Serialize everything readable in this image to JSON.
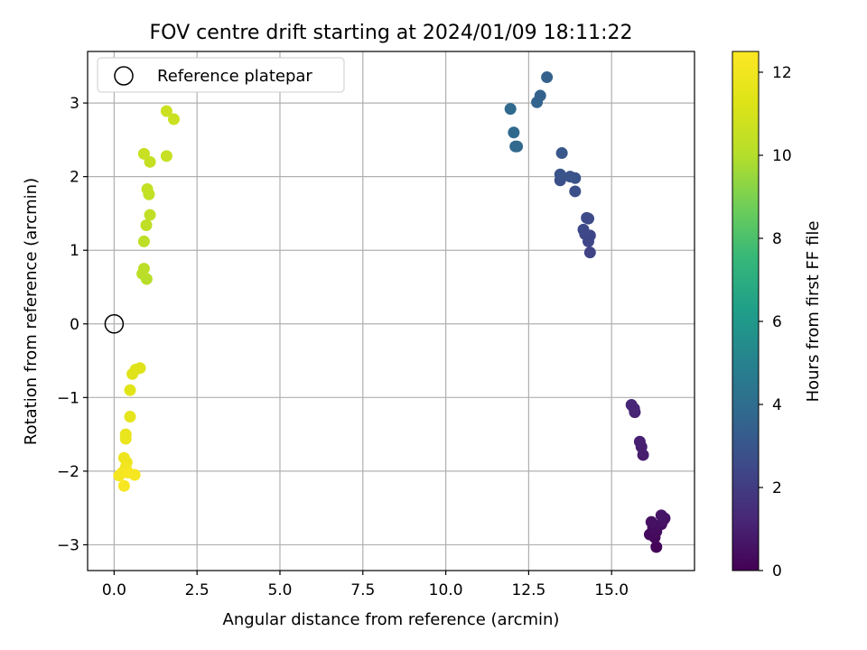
{
  "chart_data": {
    "type": "scatter",
    "title": "FOV centre drift starting at 2024/01/09 18:11:22",
    "xlabel": "Angular distance from reference (arcmin)",
    "ylabel": "Rotation from reference (arcmin)",
    "xlim": [
      -0.8,
      17.5
    ],
    "ylim": [
      -3.35,
      3.7
    ],
    "xticks": [
      0.0,
      2.5,
      5.0,
      7.5,
      10.0,
      12.5,
      15.0
    ],
    "xtick_labels": [
      "0.0",
      "2.5",
      "5.0",
      "7.5",
      "10.0",
      "12.5",
      "15.0"
    ],
    "yticks": [
      -3,
      -2,
      -1,
      0,
      1,
      2,
      3
    ],
    "ytick_labels": [
      "−3",
      "−2",
      "−1",
      "0",
      "1",
      "2",
      "3"
    ],
    "grid": true,
    "legend": {
      "position": "top-left",
      "entries": [
        "Reference platepar"
      ]
    },
    "reference_point": {
      "x": 0,
      "y": 0,
      "label": "Reference platepar"
    },
    "colorbar": {
      "label": "Hours from first FF file",
      "range": [
        0,
        12.5
      ],
      "ticks": [
        0,
        2,
        4,
        6,
        8,
        10,
        12
      ],
      "tick_labels": [
        "0",
        "2",
        "4",
        "6",
        "8",
        "10",
        "12"
      ],
      "colormap": "viridis"
    },
    "points": [
      {
        "x": 16.35,
        "y": -3.03,
        "h": 0.1
      },
      {
        "x": 16.3,
        "y": -2.9,
        "h": 0.2
      },
      {
        "x": 16.15,
        "y": -2.86,
        "h": 0.3
      },
      {
        "x": 16.35,
        "y": -2.82,
        "h": 0.35
      },
      {
        "x": 16.25,
        "y": -2.77,
        "h": 0.4
      },
      {
        "x": 16.5,
        "y": -2.72,
        "h": 0.45
      },
      {
        "x": 16.2,
        "y": -2.69,
        "h": 0.5
      },
      {
        "x": 16.55,
        "y": -2.67,
        "h": 0.55
      },
      {
        "x": 16.6,
        "y": -2.64,
        "h": 0.6
      },
      {
        "x": 16.5,
        "y": -2.6,
        "h": 0.65
      },
      {
        "x": 15.95,
        "y": -1.78,
        "h": 0.9
      },
      {
        "x": 15.9,
        "y": -1.67,
        "h": 0.95
      },
      {
        "x": 15.85,
        "y": -1.6,
        "h": 1.0
      },
      {
        "x": 15.7,
        "y": -1.2,
        "h": 1.1
      },
      {
        "x": 15.68,
        "y": -1.15,
        "h": 1.15
      },
      {
        "x": 15.6,
        "y": -1.1,
        "h": 1.2
      },
      {
        "x": 14.35,
        "y": 0.97,
        "h": 2.3
      },
      {
        "x": 14.35,
        "y": 1.2,
        "h": 2.35
      },
      {
        "x": 14.3,
        "y": 1.12,
        "h": 2.4
      },
      {
        "x": 14.2,
        "y": 1.22,
        "h": 2.45
      },
      {
        "x": 14.15,
        "y": 1.28,
        "h": 2.5
      },
      {
        "x": 14.3,
        "y": 1.43,
        "h": 2.55
      },
      {
        "x": 14.25,
        "y": 1.44,
        "h": 2.6
      },
      {
        "x": 13.9,
        "y": 1.8,
        "h": 2.75
      },
      {
        "x": 13.45,
        "y": 1.95,
        "h": 2.8
      },
      {
        "x": 13.9,
        "y": 1.98,
        "h": 2.85
      },
      {
        "x": 13.75,
        "y": 2.0,
        "h": 2.9
      },
      {
        "x": 13.45,
        "y": 2.03,
        "h": 2.95
      },
      {
        "x": 13.5,
        "y": 2.32,
        "h": 3.1
      },
      {
        "x": 12.15,
        "y": 2.41,
        "h": 3.7
      },
      {
        "x": 12.1,
        "y": 2.41,
        "h": 3.75
      },
      {
        "x": 12.05,
        "y": 2.6,
        "h": 3.8
      },
      {
        "x": 11.95,
        "y": 2.92,
        "h": 3.85
      },
      {
        "x": 12.75,
        "y": 3.01,
        "h": 3.6
      },
      {
        "x": 12.85,
        "y": 3.1,
        "h": 3.55
      },
      {
        "x": 13.05,
        "y": 3.35,
        "h": 3.5
      },
      {
        "x": 0.98,
        "y": 0.61,
        "h": 10.1
      },
      {
        "x": 0.85,
        "y": 0.68,
        "h": 10.15
      },
      {
        "x": 0.9,
        "y": 0.75,
        "h": 10.2
      },
      {
        "x": 0.9,
        "y": 1.12,
        "h": 10.25
      },
      {
        "x": 0.97,
        "y": 1.34,
        "h": 10.3
      },
      {
        "x": 1.08,
        "y": 1.48,
        "h": 10.35
      },
      {
        "x": 1.05,
        "y": 1.76,
        "h": 10.4
      },
      {
        "x": 1.0,
        "y": 1.83,
        "h": 10.45
      },
      {
        "x": 1.08,
        "y": 2.2,
        "h": 10.5
      },
      {
        "x": 1.58,
        "y": 2.28,
        "h": 10.55
      },
      {
        "x": 0.9,
        "y": 2.31,
        "h": 10.6
      },
      {
        "x": 1.8,
        "y": 2.78,
        "h": 10.65
      },
      {
        "x": 1.58,
        "y": 2.89,
        "h": 10.7
      },
      {
        "x": 0.78,
        "y": -0.6,
        "h": 11.3
      },
      {
        "x": 0.65,
        "y": -0.62,
        "h": 11.35
      },
      {
        "x": 0.55,
        "y": -0.68,
        "h": 11.4
      },
      {
        "x": 0.48,
        "y": -0.9,
        "h": 11.45
      },
      {
        "x": 0.48,
        "y": -1.26,
        "h": 11.6
      },
      {
        "x": 0.35,
        "y": -1.5,
        "h": 11.7
      },
      {
        "x": 0.35,
        "y": -1.56,
        "h": 11.75
      },
      {
        "x": 0.3,
        "y": -1.82,
        "h": 11.9
      },
      {
        "x": 0.38,
        "y": -1.88,
        "h": 11.95
      },
      {
        "x": 0.35,
        "y": -1.95,
        "h": 12.0
      },
      {
        "x": 0.25,
        "y": -2.02,
        "h": 12.1
      },
      {
        "x": 0.15,
        "y": -2.06,
        "h": 12.15
      },
      {
        "x": 0.62,
        "y": -2.05,
        "h": 12.2
      },
      {
        "x": 0.42,
        "y": -2.02,
        "h": 12.25
      },
      {
        "x": 0.3,
        "y": -2.2,
        "h": 12.3
      }
    ]
  }
}
